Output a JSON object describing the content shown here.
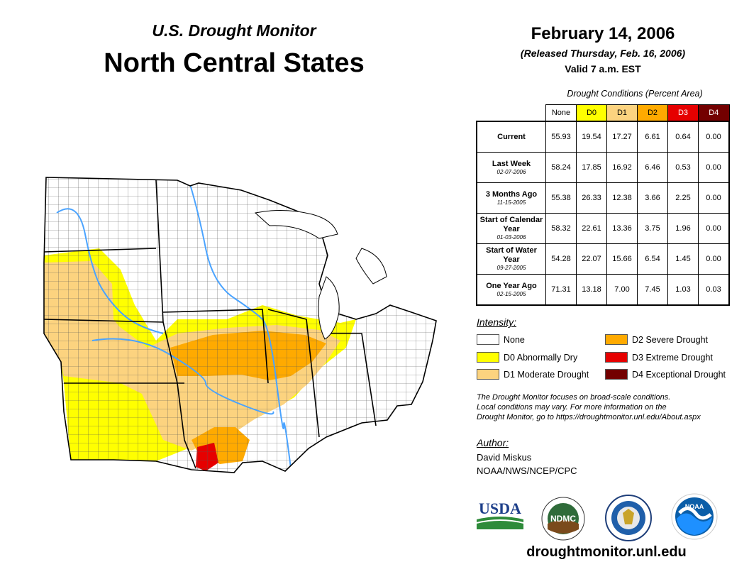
{
  "header": {
    "monitor_title": "U.S. Drought Monitor",
    "region_title": "North Central States",
    "date": "February 14, 2006",
    "released": "(Released Thursday, Feb. 16, 2006)",
    "valid": "Valid 7 a.m. EST"
  },
  "table": {
    "caption": "Drought Conditions (Percent Area)",
    "columns": [
      "None",
      "D0",
      "D1",
      "D2",
      "D3",
      "D4"
    ],
    "rows": [
      {
        "label": "Current",
        "sub": "",
        "values": [
          "55.93",
          "19.54",
          "17.27",
          "6.61",
          "0.64",
          "0.00"
        ]
      },
      {
        "label": "Last Week",
        "sub": "02-07-2006",
        "values": [
          "58.24",
          "17.85",
          "16.92",
          "6.46",
          "0.53",
          "0.00"
        ]
      },
      {
        "label": "3 Months Ago",
        "sub": "11-15-2005",
        "values": [
          "55.38",
          "26.33",
          "12.38",
          "3.66",
          "2.25",
          "0.00"
        ]
      },
      {
        "label": "Start of Calendar Year",
        "sub": "01-03-2006",
        "values": [
          "58.32",
          "22.61",
          "13.36",
          "3.75",
          "1.96",
          "0.00"
        ]
      },
      {
        "label": "Start of Water Year",
        "sub": "09-27-2005",
        "values": [
          "54.28",
          "22.07",
          "15.66",
          "6.54",
          "1.45",
          "0.00"
        ]
      },
      {
        "label": "One Year Ago",
        "sub": "02-15-2005",
        "values": [
          "71.31",
          "13.18",
          "7.00",
          "7.45",
          "1.03",
          "0.03"
        ]
      }
    ]
  },
  "legend": {
    "title": "Intensity:",
    "items": [
      {
        "label": "None",
        "color": "#ffffff"
      },
      {
        "label": "D0 Abnormally Dry",
        "color": "#ffff00"
      },
      {
        "label": "D1 Moderate Drought",
        "color": "#fcd37f"
      },
      {
        "label": "D2 Severe Drought",
        "color": "#ffaa00"
      },
      {
        "label": "D3 Extreme Drought",
        "color": "#e60000"
      },
      {
        "label": "D4 Exceptional Drought",
        "color": "#730000"
      }
    ]
  },
  "disclaimer": {
    "line1": "The Drought Monitor focuses on broad-scale conditions.",
    "line2": "Local conditions may vary. For more information on the",
    "line3": "Drought Monitor, go to https://droughtmonitor.unl.edu/About.aspx"
  },
  "author": {
    "label": "Author:",
    "name": "David Miskus",
    "org": "NOAA/NWS/NCEP/CPC"
  },
  "logos": {
    "usda": "USDA",
    "ndmc": "NDMC",
    "noaa": "NOAA"
  },
  "website": "droughtmonitor.unl.edu",
  "colors": {
    "none": "#ffffff",
    "d0": "#ffff00",
    "d1": "#fcd37f",
    "d2": "#ffaa00",
    "d3": "#e60000",
    "d4": "#730000",
    "water": "#4aa3ff"
  }
}
